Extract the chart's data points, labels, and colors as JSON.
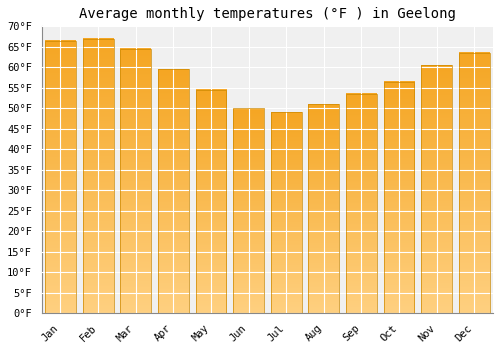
{
  "title": "Average monthly temperatures (°F ) in Geelong",
  "months": [
    "Jan",
    "Feb",
    "Mar",
    "Apr",
    "May",
    "Jun",
    "Jul",
    "Aug",
    "Sep",
    "Oct",
    "Nov",
    "Dec"
  ],
  "values": [
    66.5,
    67.0,
    64.5,
    59.5,
    54.5,
    50.0,
    49.0,
    51.0,
    53.5,
    56.5,
    60.5,
    63.5
  ],
  "bar_color_top": "#F5A623",
  "bar_color_bottom": "#FFD080",
  "bar_edge_color": "#CC8800",
  "background_color": "#FFFFFF",
  "plot_bg_color": "#F0F0F0",
  "grid_color": "#FFFFFF",
  "ylim": [
    0,
    70
  ],
  "yticks": [
    0,
    5,
    10,
    15,
    20,
    25,
    30,
    35,
    40,
    45,
    50,
    55,
    60,
    65,
    70
  ],
  "title_fontsize": 10,
  "tick_fontsize": 7.5,
  "font_family": "monospace",
  "bar_width": 0.82
}
